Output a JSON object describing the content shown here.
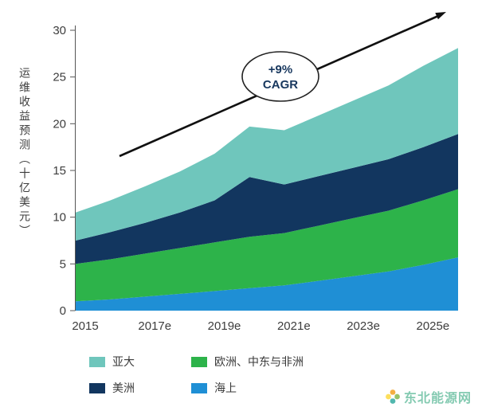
{
  "chart_data": {
    "type": "area",
    "stacked": true,
    "ylabel": "运维收益预测（十亿美元）",
    "ylim": [
      0,
      30
    ],
    "y_ticks": [
      0,
      5,
      10,
      15,
      20,
      25,
      30
    ],
    "x": [
      2015,
      2016,
      2017,
      2018,
      2019,
      2020,
      2021,
      2022,
      2023,
      2024,
      2025,
      2026
    ],
    "x_ticks": [
      {
        "year": 2015,
        "label": "2015"
      },
      {
        "year": 2017,
        "label": "2017e"
      },
      {
        "year": 2019,
        "label": "2019e"
      },
      {
        "year": 2021,
        "label": "2021e"
      },
      {
        "year": 2023,
        "label": "2023e"
      },
      {
        "year": 2025,
        "label": "2025e"
      }
    ],
    "series": [
      {
        "name": "海上",
        "color": "#1f8fd5",
        "values": [
          1.0,
          1.2,
          1.5,
          1.8,
          2.1,
          2.4,
          2.7,
          3.2,
          3.7,
          4.2,
          4.9,
          5.7
        ]
      },
      {
        "name": "欧洲、中东与非洲",
        "color": "#2db34a",
        "values": [
          4.0,
          4.3,
          4.6,
          4.9,
          5.2,
          5.5,
          5.6,
          5.9,
          6.2,
          6.5,
          6.9,
          7.3
        ]
      },
      {
        "name": "美洲",
        "color": "#12365f",
        "values": [
          2.5,
          2.9,
          3.3,
          3.8,
          4.5,
          6.4,
          5.2,
          5.3,
          5.4,
          5.5,
          5.7,
          5.9
        ]
      },
      {
        "name": "亚大",
        "color": "#6fc6bc",
        "values": [
          3.0,
          3.4,
          3.9,
          4.4,
          5.0,
          5.4,
          5.8,
          6.5,
          7.2,
          7.9,
          8.7,
          9.2
        ]
      }
    ],
    "annotation": {
      "line1": "+9%",
      "line2": "CAGR"
    },
    "legend": [
      {
        "label": "亚大",
        "color": "#6fc6bc"
      },
      {
        "label": "欧洲、中东与非洲",
        "color": "#2db34a"
      },
      {
        "label": "美洲",
        "color": "#12365f"
      },
      {
        "label": "海上",
        "color": "#1f8fd5"
      }
    ],
    "legend_position": "bottom",
    "grid": false
  },
  "watermark": {
    "text": "东北能源网"
  }
}
